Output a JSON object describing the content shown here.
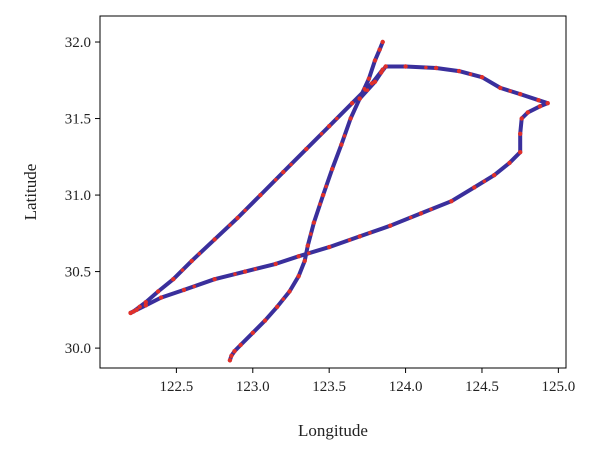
{
  "chart_data": {
    "type": "line",
    "title": "",
    "xlabel": "Longitude",
    "ylabel": "Latitude",
    "xlim": [
      122.0,
      125.05
    ],
    "ylim": [
      29.87,
      32.17
    ],
    "grid": false,
    "legend": "none",
    "x_ticks": [
      122.5,
      123.0,
      123.5,
      124.0,
      124.5,
      125.0
    ],
    "x_tick_labels": [
      "122.5",
      "123.0",
      "123.5",
      "124.0",
      "124.5",
      "125.0"
    ],
    "y_ticks": [
      30.0,
      30.5,
      31.0,
      31.5,
      32.0
    ],
    "y_tick_labels": [
      "30.0",
      "30.5",
      "31.0",
      "31.5",
      "32.0"
    ],
    "series": [
      {
        "line_color": "#3a2f9c",
        "marker_color": "#e0302a",
        "x": [
          122.85,
          122.86,
          122.88,
          122.92,
          123.0,
          123.08,
          123.16,
          123.24,
          123.3,
          123.34,
          123.36,
          123.4,
          123.46,
          123.52,
          123.58,
          123.64,
          123.7,
          123.76,
          123.8,
          123.83,
          123.85
        ],
        "y": [
          29.92,
          29.95,
          29.98,
          30.02,
          30.1,
          30.18,
          30.27,
          30.37,
          30.47,
          30.57,
          30.67,
          30.82,
          31.0,
          31.17,
          31.33,
          31.5,
          31.63,
          31.76,
          31.88,
          31.95,
          32.0
        ]
      },
      {
        "line_color": "#3a2f9c",
        "marker_color": "#e0302a",
        "x": [
          123.85,
          123.78,
          123.65,
          123.5,
          123.35,
          123.2,
          123.05,
          122.9,
          122.75,
          122.6,
          122.48,
          122.38,
          122.3,
          122.26,
          122.22,
          122.2
        ],
        "y": [
          31.82,
          31.73,
          31.6,
          31.45,
          31.3,
          31.15,
          31.0,
          30.85,
          30.71,
          30.57,
          30.45,
          30.37,
          30.3,
          30.27,
          30.24,
          30.23
        ]
      },
      {
        "line_color": "#3a2f9c",
        "marker_color": "#e0302a",
        "x": [
          122.2,
          122.24,
          122.3,
          122.4,
          122.55,
          122.75,
          122.95,
          123.15,
          123.3,
          123.5,
          123.7,
          123.9,
          124.1,
          124.3,
          124.45,
          124.58,
          124.68,
          124.75,
          124.75,
          124.76,
          124.8,
          124.88,
          124.93,
          124.87,
          124.75,
          124.62,
          124.5,
          124.35,
          124.2,
          124.0,
          123.87,
          123.84,
          123.8,
          123.7
        ],
        "y": [
          30.23,
          30.25,
          30.28,
          30.33,
          30.38,
          30.45,
          30.5,
          30.55,
          30.6,
          30.66,
          30.73,
          30.8,
          30.88,
          30.96,
          31.05,
          31.13,
          31.21,
          31.28,
          31.4,
          31.5,
          31.54,
          31.58,
          31.6,
          31.62,
          31.66,
          31.7,
          31.77,
          31.81,
          31.83,
          31.84,
          31.84,
          31.8,
          31.74,
          31.63
        ]
      }
    ]
  }
}
